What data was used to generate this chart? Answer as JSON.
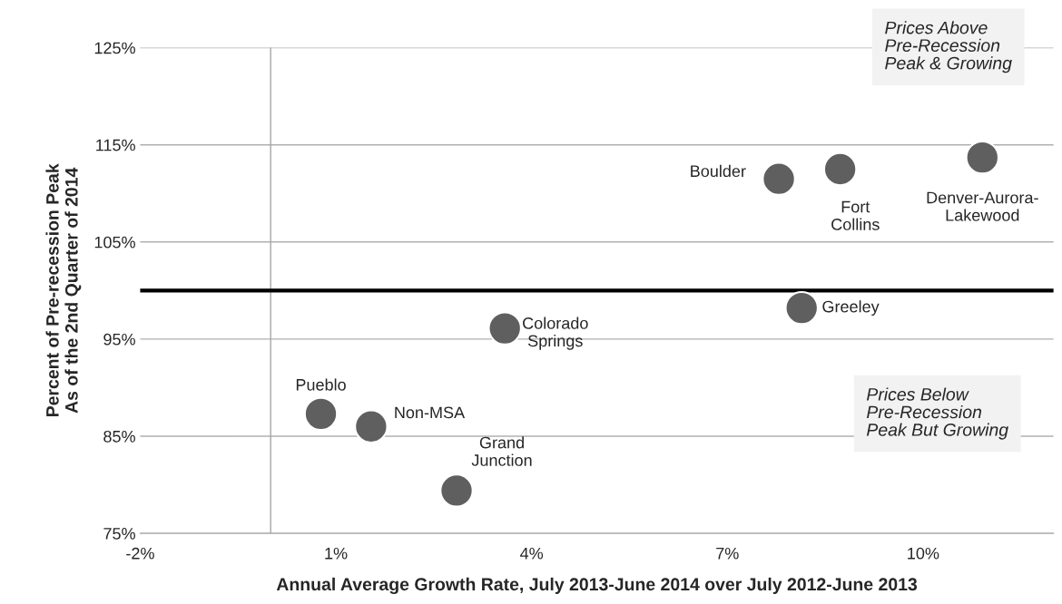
{
  "chart_data": {
    "type": "scatter",
    "xlabel": "Annual Average Growth Rate, July 2013-June 2014 over July 2012-June 2013",
    "ylabel": "Percent of Pre-recession Peak\nAs of the 2nd Quarter of 2014",
    "x": [
      0.77,
      1.54,
      2.85,
      3.59,
      7.79,
      8.73,
      10.91,
      8.14
    ],
    "series": [
      {
        "color": "#5f5f5f",
        "values": [
          87.3,
          86.0,
          79.4,
          96.1,
          111.5,
          112.5,
          113.7,
          98.2
        ]
      }
    ],
    "marker": "circle",
    "xlim": [
      -2,
      12
    ],
    "xticks": [
      {
        "value": -2,
        "label": "-2%"
      },
      {
        "value": 1,
        "label": "1%"
      },
      {
        "value": 4,
        "label": "4%"
      },
      {
        "value": 7,
        "label": "7%"
      },
      {
        "value": 10,
        "label": "10%"
      }
    ],
    "ylim": [
      75,
      125
    ],
    "yticks": [
      {
        "value": 75,
        "label": "75%"
      },
      {
        "value": 85,
        "label": "85%"
      },
      {
        "value": 95,
        "label": "95%"
      },
      {
        "value": 105,
        "label": "105%"
      },
      {
        "value": 115,
        "label": "115%"
      },
      {
        "value": 125,
        "label": "125%"
      }
    ],
    "grid": "y",
    "ref_lines": [
      {
        "axis": "y",
        "value": 100,
        "color": "#000000"
      },
      {
        "axis": "x",
        "value": 0,
        "color": "#a6a6a6"
      }
    ],
    "annotations": [
      {
        "text": "Pueblo",
        "x": 0.77,
        "y": 87.3
      },
      {
        "text": "Non-MSA",
        "x": 1.54,
        "y": 86.0
      },
      {
        "text": "Grand\nJunction",
        "x": 2.85,
        "y": 79.4
      },
      {
        "text": "Colorado\nSprings",
        "x": 3.59,
        "y": 96.1
      },
      {
        "text": "Boulder",
        "x": 7.79,
        "y": 111.5
      },
      {
        "text": "Fort\nCollins",
        "x": 8.73,
        "y": 112.5
      },
      {
        "text": "Denver-Aurora-\nLakewood",
        "x": 10.91,
        "y": 113.7
      },
      {
        "text": "Greeley",
        "x": 8.14,
        "y": 98.2
      },
      "Prices Above\nPre-Recession\nPeak & Growing",
      "Prices Below\nPre-Recession\nPeak But Growing"
    ]
  }
}
